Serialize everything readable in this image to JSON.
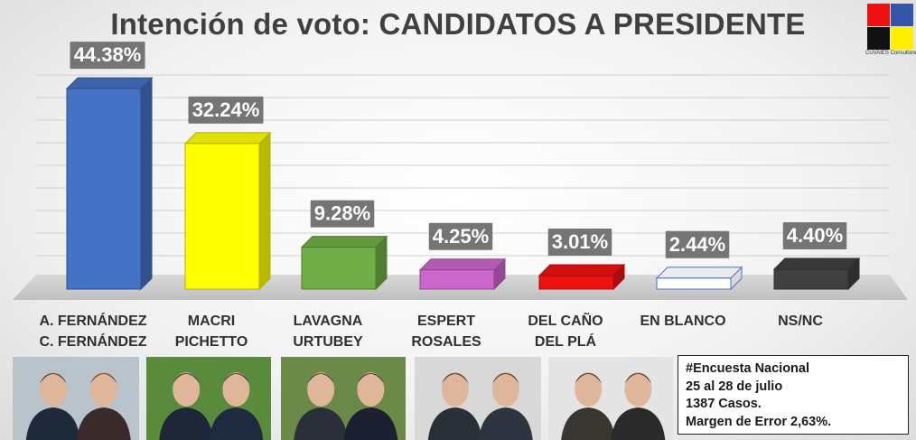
{
  "chart_data": {
    "type": "bar",
    "title": "Intención de voto: CANDIDATOS A PRESIDENTE",
    "categories": [
      [
        "A. FERNÁNDEZ",
        "C. FERNÁNDEZ"
      ],
      [
        "MACRI",
        "PICHETTO"
      ],
      [
        "LAVAGNA",
        "URTUBEY"
      ],
      [
        "ESPERT",
        "ROSALES"
      ],
      [
        "DEL CAÑO",
        "DEL PLÁ"
      ],
      [
        "EN BLANCO"
      ],
      [
        "NS/NC"
      ]
    ],
    "values": [
      44.38,
      32.24,
      9.28,
      4.25,
      3.01,
      2.44,
      4.4
    ],
    "labels": [
      "44.38%",
      "32.24%",
      "9.28%",
      "4.25%",
      "3.01%",
      "2.44%",
      "4.40%"
    ],
    "colors": [
      "#4472c4",
      "#ffff00",
      "#70ad47",
      "#cc66cc",
      "#ee1111",
      "#ffffff",
      "#404040"
    ],
    "grid": true,
    "xlabel": "",
    "ylabel": ""
  },
  "logo": {
    "text": "CUVAIES Consultores",
    "colors": [
      "#ee1111",
      "#3355aa",
      "#111111",
      "#ffee00"
    ]
  },
  "photos": [
    "a-fernandez-c-fernandez-photo",
    "macri-pichetto-photo",
    "lavagna-urtubey-photo",
    "espert-rosales-photo",
    "del-cano-del-pla-photo"
  ],
  "info": {
    "lines": [
      "#Encuesta Nacional",
      "25 al 28 de julio",
      "1387 Casos.",
      "Margen de Error 2,63%."
    ]
  }
}
